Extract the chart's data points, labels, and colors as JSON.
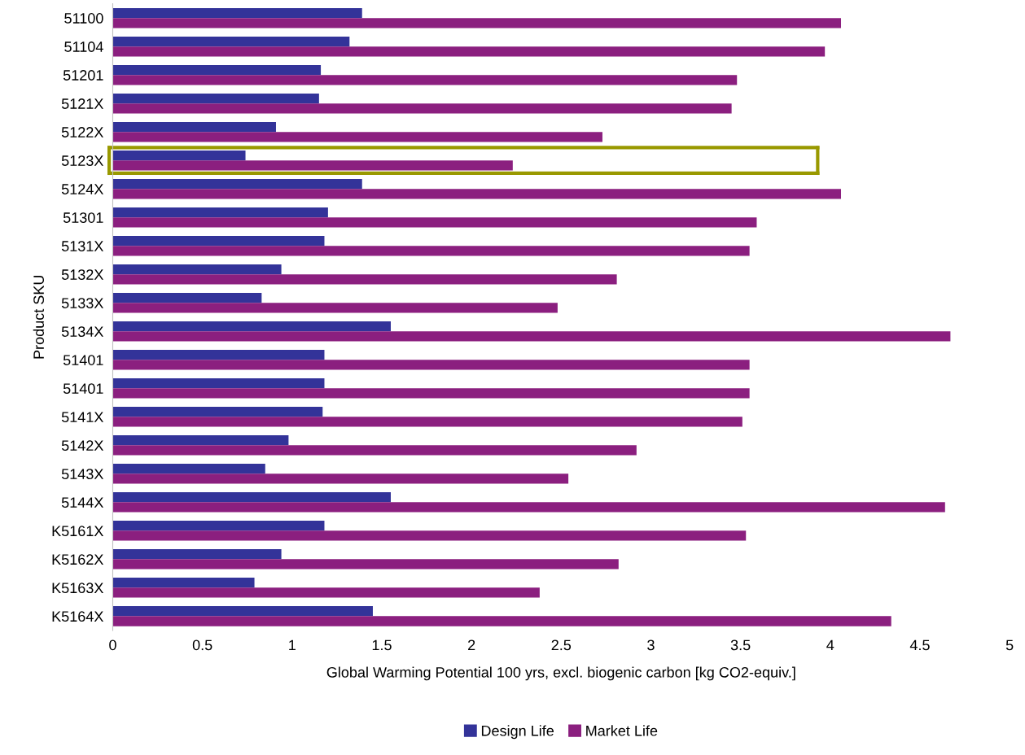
{
  "chart_data": {
    "type": "bar",
    "orientation": "horizontal",
    "xlabel": "Global Warming Potential 100 yrs, excl. biogenic carbon [kg CO2-equiv.]",
    "ylabel": "Product SKU",
    "categories": [
      "51100",
      "51104",
      "51201",
      "5121X",
      "5122X",
      "5123X",
      "5124X",
      "51301",
      "5131X",
      "5132X",
      "5133X",
      "5134X",
      "51401",
      "51401",
      "5141X",
      "5142X",
      "5143X",
      "5144X",
      "K5161X",
      "K5162X",
      "K5163X",
      "K5164X"
    ],
    "series": [
      {
        "name": "Design Life",
        "color": "#333399",
        "values": [
          1.39,
          1.32,
          1.16,
          1.15,
          0.91,
          0.74,
          1.39,
          1.2,
          1.18,
          0.94,
          0.83,
          1.55,
          1.18,
          1.18,
          1.17,
          0.98,
          0.85,
          1.55,
          1.18,
          0.94,
          0.79,
          1.45
        ]
      },
      {
        "name": "Market Life",
        "color": "#8b1f7f",
        "values": [
          4.06,
          3.97,
          3.48,
          3.45,
          2.73,
          2.23,
          4.06,
          3.59,
          3.55,
          2.81,
          2.48,
          4.67,
          3.55,
          3.55,
          3.51,
          2.92,
          2.54,
          4.64,
          3.53,
          2.82,
          2.38,
          4.34
        ]
      }
    ],
    "xlim": [
      0,
      5
    ],
    "xticks": [
      0,
      0.5,
      1,
      1.5,
      2,
      2.5,
      3,
      3.5,
      4,
      4.5,
      5
    ],
    "grid": false,
    "legend": "bottom"
  }
}
